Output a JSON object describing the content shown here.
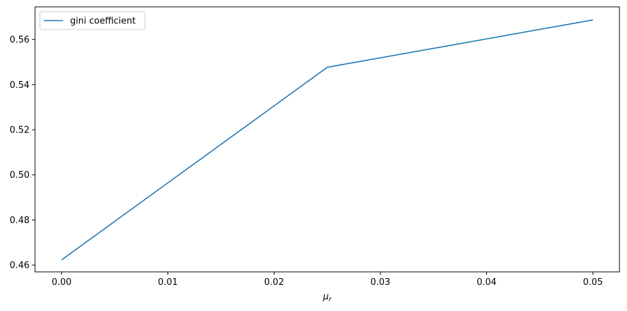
{
  "chart_data": {
    "type": "line",
    "title": "",
    "xlabel": "μ",
    "xlabel_subscript": "r",
    "ylabel": "",
    "xlim": [
      -0.0025,
      0.0525
    ],
    "ylim": [
      0.457,
      0.5745
    ],
    "xticks": [
      0.0,
      0.01,
      0.02,
      0.03,
      0.04,
      0.05
    ],
    "xtick_labels": [
      "0.00",
      "0.01",
      "0.02",
      "0.03",
      "0.04",
      "0.05"
    ],
    "yticks": [
      0.46,
      0.48,
      0.5,
      0.52,
      0.54,
      0.56
    ],
    "ytick_labels": [
      "0.46",
      "0.48",
      "0.50",
      "0.52",
      "0.54",
      "0.56"
    ],
    "grid": false,
    "legend_position": "upper-left",
    "series": [
      {
        "name": "gini coefficient",
        "color": "#1f77b4",
        "x": [
          0.0,
          0.025,
          0.05
        ],
        "y": [
          0.4623,
          0.5477,
          0.5687
        ]
      }
    ]
  }
}
